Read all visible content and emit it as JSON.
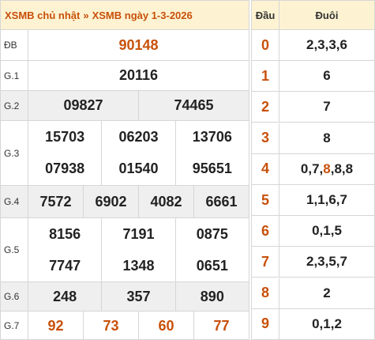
{
  "header": {
    "link_sunday": "XSMB chủ nhật",
    "separator": "»",
    "link_date": "XSMB ngày 1-3-2026"
  },
  "prizes": [
    {
      "label": "ĐB",
      "lines": [
        [
          "90148"
        ]
      ],
      "highlight": true
    },
    {
      "label": "G.1",
      "lines": [
        [
          "20116"
        ]
      ]
    },
    {
      "label": "G.2",
      "lines": [
        [
          "09827",
          "74465"
        ]
      ]
    },
    {
      "label": "G.3",
      "lines": [
        [
          "15703",
          "06203",
          "13706"
        ],
        [
          "07938",
          "01540",
          "95651"
        ]
      ]
    },
    {
      "label": "G.4",
      "lines": [
        [
          "7572",
          "6902",
          "4082",
          "6661"
        ]
      ]
    },
    {
      "label": "G.5",
      "lines": [
        [
          "8156",
          "7191",
          "0875"
        ],
        [
          "7747",
          "1348",
          "0651"
        ]
      ]
    },
    {
      "label": "G.6",
      "lines": [
        [
          "248",
          "357",
          "890"
        ]
      ]
    },
    {
      "label": "G.7",
      "lines": [
        [
          "92",
          "73",
          "60",
          "77"
        ]
      ],
      "highlight": true
    }
  ],
  "loto": {
    "head_label": "Đầu",
    "tail_label": "Đuôi",
    "rows": [
      {
        "head": "0",
        "tail": "2,3,3,6"
      },
      {
        "head": "1",
        "tail": "6"
      },
      {
        "head": "2",
        "tail": "7"
      },
      {
        "head": "3",
        "tail": "8"
      },
      {
        "head": "4",
        "tail_parts": [
          "0,7,",
          "8",
          ",8,8"
        ]
      },
      {
        "head": "5",
        "tail": "1,1,6,7"
      },
      {
        "head": "6",
        "tail": "0,1,5"
      },
      {
        "head": "7",
        "tail": "2,3,5,7"
      },
      {
        "head": "8",
        "tail": "2"
      },
      {
        "head": "9",
        "tail": "0,1,2"
      }
    ]
  },
  "colors": {
    "accent": "#c8500a",
    "header_bg": "#fdf3d2",
    "shaded_row": "#efefef",
    "border": "#d6d6d6"
  }
}
